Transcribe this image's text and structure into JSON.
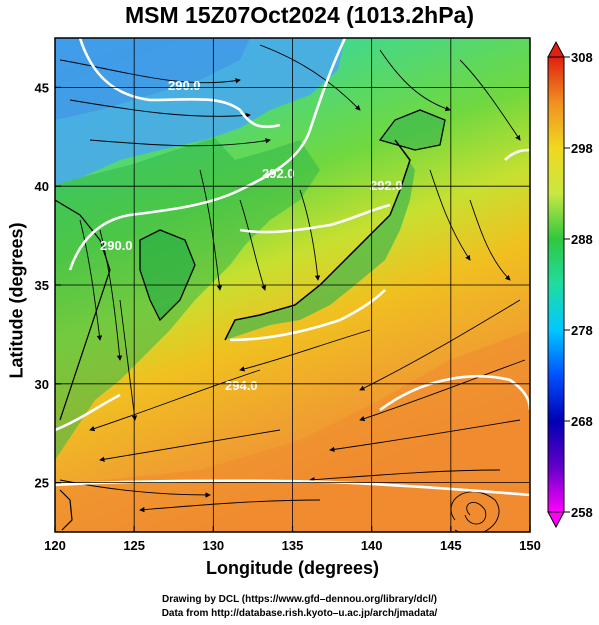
{
  "title": "MSM 15Z07Oct2024 (1013.2hPa)",
  "xlabel": "Longitude (degrees)",
  "ylabel": "Latitude  (degrees)",
  "x_ticks": [
    120,
    125,
    130,
    135,
    140,
    145,
    150
  ],
  "y_ticks": [
    25,
    30,
    35,
    40,
    45
  ],
  "colorbar": {
    "min": 258,
    "max": 308,
    "ticks": [
      258,
      268,
      278,
      288,
      298,
      308
    ],
    "colors": [
      "#ff00ff",
      "#0000b4",
      "#0050ff",
      "#00c8ff",
      "#20dca0",
      "#30c840",
      "#a0e040",
      "#f0f020",
      "#f0b020",
      "#ee8010",
      "#e03010"
    ]
  },
  "extent": {
    "lon": [
      120,
      150
    ],
    "lat": [
      22.5,
      47.5
    ]
  },
  "contour_labels": [
    "290.0",
    "292.0",
    "292.0",
    "290.0",
    "294.0"
  ],
  "credits": {
    "line1": "Drawing by DCL (https://www.gfd–dennou.org/library/dcl/)",
    "line2": "Data from http://database.rish.kyoto–u.ac.jp/arch/jmadata/"
  }
}
